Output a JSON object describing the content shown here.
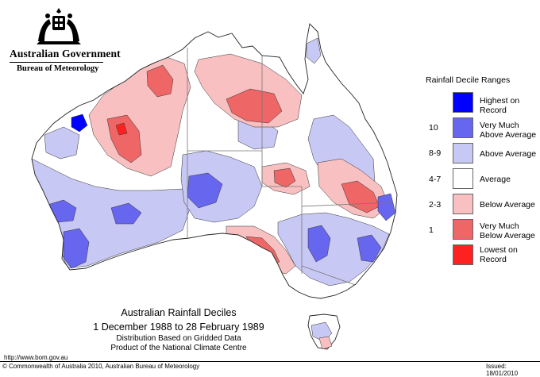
{
  "header": {
    "government": "Australian Government",
    "bureau": "Bureau of Meteorology"
  },
  "legend": {
    "title": "Rainfall Decile Ranges",
    "items": [
      {
        "range": "",
        "label_lines": [
          "Highest on",
          "Record"
        ],
        "color": "#0000ff"
      },
      {
        "range": "10",
        "label_lines": [
          "Very Much",
          "Above Average"
        ],
        "color": "#6666ee"
      },
      {
        "range": "8-9",
        "label_lines": [
          "Above Average"
        ],
        "color": "#c8c8f4"
      },
      {
        "range": "4-7",
        "label_lines": [
          "Average"
        ],
        "color": "#ffffff"
      },
      {
        "range": "2-3",
        "label_lines": [
          "Below Average"
        ],
        "color": "#f8c0c0"
      },
      {
        "range": "1",
        "label_lines": [
          "Very Much",
          "Below Average"
        ],
        "color": "#ee6666"
      },
      {
        "range": "",
        "label_lines": [
          "Lowest on",
          "Record"
        ],
        "color": "#ff2020"
      }
    ]
  },
  "title": {
    "main": "Australian Rainfall Deciles",
    "period": "1 December 1988 to 28 February 1989",
    "sub1": "Distribution Based on Gridded Data",
    "sub2": "Product of the National Climate Centre"
  },
  "footer": {
    "url": "http://www.bom.gov.au",
    "copyright": "© Commonwealth of Australia 2010, Australian Bureau of Meteorology",
    "issued": "Issued: 18/01/2010"
  }
}
